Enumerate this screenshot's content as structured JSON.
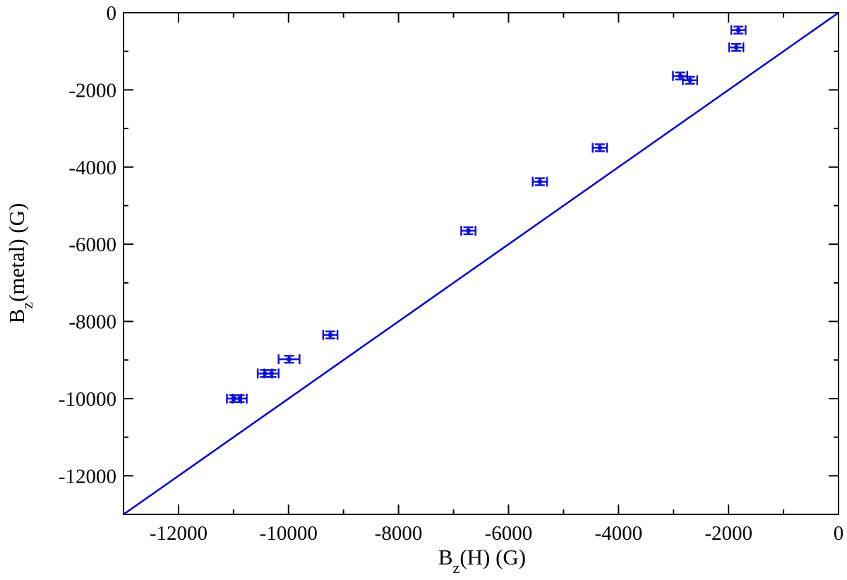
{
  "chart_data": {
    "type": "scatter",
    "xlabel": {
      "main": "B",
      "sub": "z",
      "rest": "(H)  (G)"
    },
    "ylabel": {
      "main": "B",
      "sub": "z",
      "rest": "(metal)  (G)"
    },
    "xlim": [
      -13000,
      0
    ],
    "ylim": [
      -13000,
      0
    ],
    "x_ticks": [
      -12000,
      -10000,
      -8000,
      -6000,
      -4000,
      -2000,
      0
    ],
    "y_ticks": [
      -12000,
      -10000,
      -8000,
      -6000,
      -4000,
      -2000,
      0
    ],
    "minor_tick_step": 1000,
    "grid": false,
    "colors": {
      "series": "#1010d8",
      "reference_line": "#0000cc"
    },
    "reference_line": {
      "x": [
        -13000,
        0
      ],
      "y": [
        -13000,
        0
      ]
    },
    "points": [
      {
        "x": -1820,
        "y": -450,
        "xerr": 130,
        "yerr": 90
      },
      {
        "x": -1860,
        "y": -900,
        "xerr": 130,
        "yerr": 90
      },
      {
        "x": -2880,
        "y": -1640,
        "xerr": 130,
        "yerr": 90
      },
      {
        "x": -2700,
        "y": -1750,
        "xerr": 130,
        "yerr": 90
      },
      {
        "x": -4340,
        "y": -3500,
        "xerr": 130,
        "yerr": 90
      },
      {
        "x": -5430,
        "y": -4380,
        "xerr": 130,
        "yerr": 90
      },
      {
        "x": -6730,
        "y": -5650,
        "xerr": 130,
        "yerr": 90
      },
      {
        "x": -9240,
        "y": -8350,
        "xerr": 130,
        "yerr": 90
      },
      {
        "x": -9990,
        "y": -8980,
        "xerr": 190,
        "yerr": 90
      },
      {
        "x": -10430,
        "y": -9350,
        "xerr": 130,
        "yerr": 90
      },
      {
        "x": -10310,
        "y": -9350,
        "xerr": 130,
        "yerr": 90
      },
      {
        "x": -10990,
        "y": -10000,
        "xerr": 130,
        "yerr": 90
      },
      {
        "x": -10890,
        "y": -10000,
        "xerr": 130,
        "yerr": 90
      }
    ]
  }
}
